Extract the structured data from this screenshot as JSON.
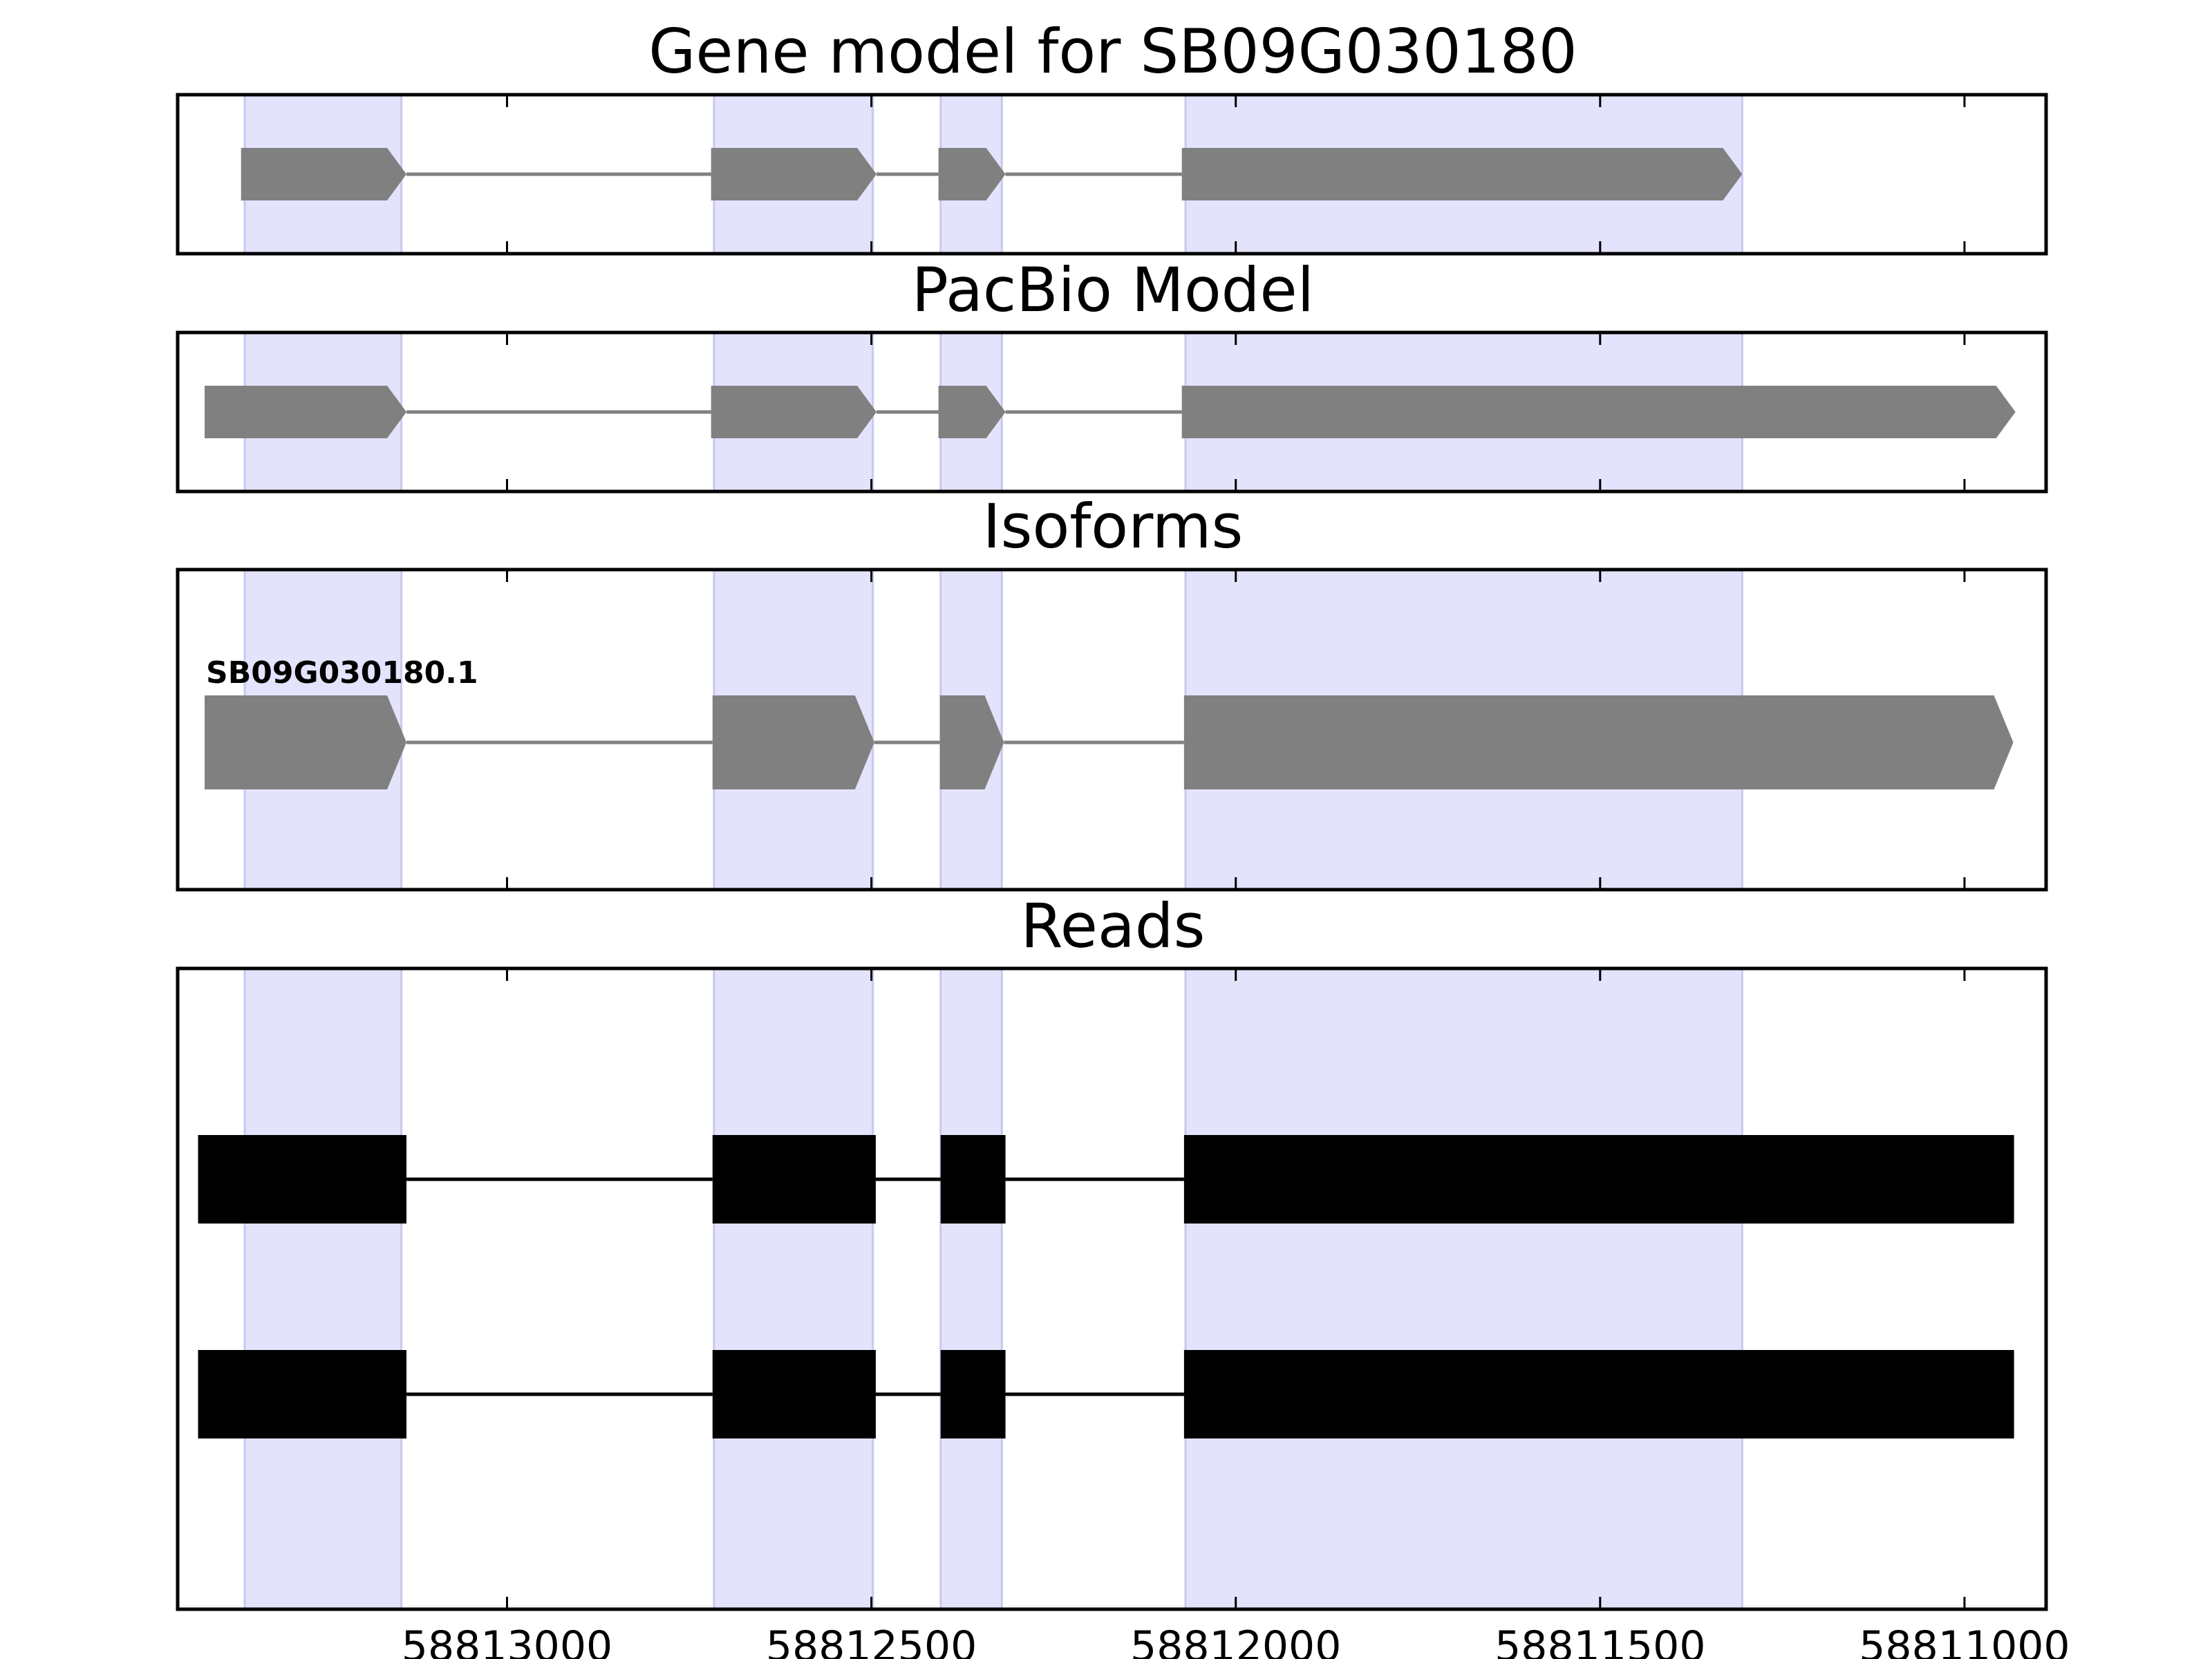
{
  "chart_data": {
    "type": "gene-structure",
    "x_axis": {
      "xlim": [
        58813452,
        58810888
      ],
      "reversed": true,
      "ticks": [
        58813000,
        58812500,
        58812000,
        58811500,
        58811000
      ],
      "tick_labels": [
        "58813000",
        "58812500",
        "58812000",
        "58811500",
        "58811000"
      ]
    },
    "highlight_color": "#e3e3fc",
    "highlight_regions": [
      {
        "start": 58813360,
        "end": 58813145
      },
      {
        "start": 58812716,
        "end": 58812498
      },
      {
        "start": 58812405,
        "end": 58812321
      },
      {
        "start": 58812069,
        "end": 58811305
      }
    ],
    "panels": [
      {
        "title": "Gene model for SB09G030180",
        "color": "#808080",
        "style": "arrow",
        "transcripts": [
          {
            "label": "",
            "exons": [
              [
                58813365,
                58813138
              ],
              [
                58812720,
                58812493
              ],
              [
                58812408,
                58812316
              ],
              [
                58812074,
                58811305
              ]
            ]
          }
        ]
      },
      {
        "title": "PacBio Model",
        "color": "#808080",
        "style": "arrow",
        "transcripts": [
          {
            "label": "",
            "exons": [
              [
                58813415,
                58813138
              ],
              [
                58812720,
                58812493
              ],
              [
                58812408,
                58812316
              ],
              [
                58812074,
                58810930
              ]
            ]
          }
        ]
      },
      {
        "title": "Isoforms",
        "color": "#808080",
        "style": "arrow",
        "transcripts": [
          {
            "label": "SB09G030180.1",
            "exons": [
              [
                58813415,
                58813138
              ],
              [
                58812718,
                58812496
              ],
              [
                58812406,
                58812318
              ],
              [
                58812071,
                58810933
              ]
            ]
          }
        ]
      },
      {
        "title": "Reads",
        "color": "#000000",
        "style": "block",
        "transcripts": [
          {
            "label": "",
            "exons": [
              [
                58813424,
                58813138
              ],
              [
                58812718,
                58812494
              ],
              [
                58812405,
                58812316
              ],
              [
                58812071,
                58810932
              ]
            ]
          },
          {
            "label": "",
            "exons": [
              [
                58813424,
                58813138
              ],
              [
                58812718,
                58812494
              ],
              [
                58812405,
                58812316
              ],
              [
                58812071,
                58810932
              ]
            ]
          }
        ]
      }
    ]
  }
}
